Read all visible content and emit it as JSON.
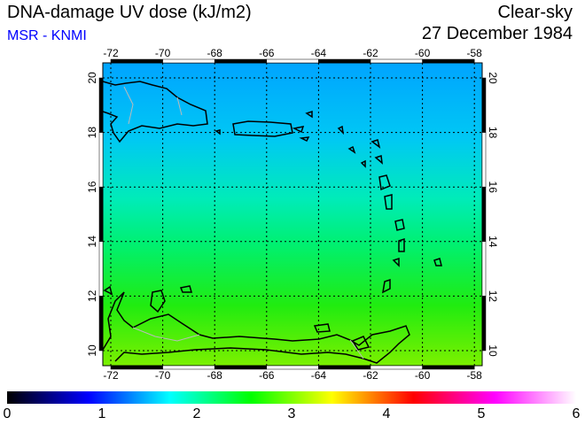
{
  "header": {
    "title": "DNA-damage UV dose (kJ/m2)",
    "source": "MSR - KNMI",
    "sky": "Clear-sky",
    "date": "27 December 1984"
  },
  "map": {
    "lon_labels": [
      "-72",
      "-70",
      "-68",
      "-66",
      "-64",
      "-62",
      "-60",
      "-58"
    ],
    "lat_labels": [
      "20",
      "18",
      "16",
      "14",
      "12",
      "10"
    ],
    "lon_range": [
      -72.3,
      -57.7
    ],
    "lat_range": [
      9.5,
      20.6
    ]
  },
  "colorbar": {
    "labels": [
      "0",
      "1",
      "2",
      "3",
      "4",
      "5",
      "6"
    ],
    "colors": [
      "#000000",
      "#0000ff",
      "#00ffff",
      "#00ff00",
      "#ffff00",
      "#ff0000",
      "#ff00ff",
      "#ffffff"
    ]
  }
}
